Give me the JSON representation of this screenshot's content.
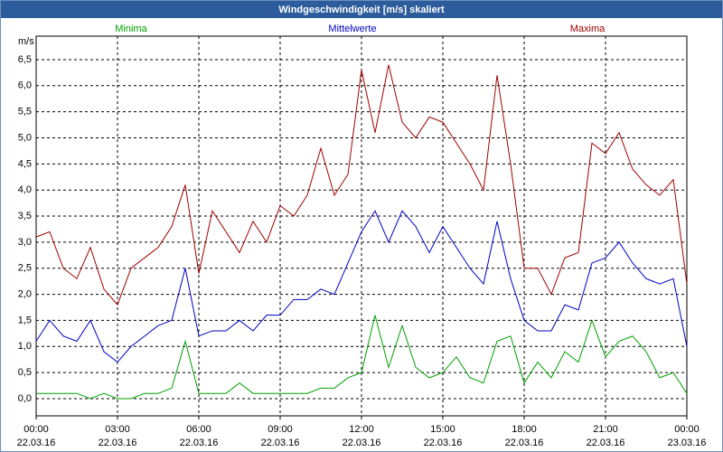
{
  "chart_data": {
    "type": "line",
    "title": "Windgeschwindigkeit [m/s] skaliert",
    "ylabel": "m/s",
    "x": [
      0,
      0.5,
      1,
      1.5,
      2,
      2.5,
      3,
      3.5,
      4,
      4.5,
      5,
      5.5,
      6,
      6.5,
      7,
      7.5,
      8,
      8.5,
      9,
      9.5,
      10,
      10.5,
      11,
      11.5,
      12,
      12.5,
      13,
      13.5,
      14,
      14.5,
      15,
      15.5,
      16,
      16.5,
      17,
      17.5,
      18,
      18.5,
      19,
      19.5,
      20,
      20.5,
      21,
      21.5,
      22,
      22.5,
      23,
      23.5,
      24
    ],
    "series": [
      {
        "name": "Minima",
        "color": "#00a000",
        "values": [
          0.1,
          0.1,
          0.1,
          0.1,
          0.0,
          0.1,
          0.0,
          0.0,
          0.1,
          0.1,
          0.2,
          1.1,
          0.1,
          0.1,
          0.1,
          0.3,
          0.1,
          0.1,
          0.1,
          0.1,
          0.1,
          0.2,
          0.2,
          0.4,
          0.5,
          1.6,
          0.6,
          1.4,
          0.6,
          0.4,
          0.5,
          0.8,
          0.4,
          0.3,
          1.1,
          1.2,
          0.3,
          0.7,
          0.4,
          0.9,
          0.7,
          1.5,
          0.8,
          1.1,
          1.2,
          0.9,
          0.4,
          0.5,
          0.1
        ]
      },
      {
        "name": "Mittelwerte",
        "color": "#0000c0",
        "values": [
          1.1,
          1.5,
          1.2,
          1.1,
          1.5,
          0.9,
          0.7,
          1.0,
          1.2,
          1.4,
          1.5,
          2.5,
          1.2,
          1.3,
          1.3,
          1.5,
          1.3,
          1.6,
          1.6,
          1.9,
          1.9,
          2.1,
          2.0,
          2.6,
          3.2,
          3.6,
          3.0,
          3.6,
          3.3,
          2.8,
          3.3,
          2.9,
          2.5,
          2.2,
          3.4,
          2.3,
          1.5,
          1.3,
          1.3,
          1.8,
          1.7,
          2.6,
          2.7,
          3.0,
          2.6,
          2.3,
          2.2,
          2.3,
          1.0
        ]
      },
      {
        "name": "Maxima",
        "color": "#a00000",
        "values": [
          3.1,
          3.2,
          2.5,
          2.3,
          2.9,
          2.1,
          1.8,
          2.5,
          2.7,
          2.9,
          3.3,
          4.1,
          2.4,
          3.6,
          3.2,
          2.8,
          3.4,
          3.0,
          3.7,
          3.5,
          3.9,
          4.8,
          3.9,
          4.3,
          6.3,
          5.1,
          6.4,
          5.3,
          5.0,
          5.4,
          5.3,
          4.9,
          4.5,
          4.0,
          6.2,
          4.5,
          2.5,
          2.5,
          2.0,
          2.7,
          2.8,
          4.9,
          4.7,
          5.1,
          4.4,
          4.1,
          3.9,
          4.2,
          2.2
        ]
      }
    ],
    "xlim": [
      0,
      24
    ],
    "ylim": [
      -0.33,
      6.95
    ],
    "yticks": [
      {
        "value": 0,
        "label": "0,0"
      },
      {
        "value": 0.5,
        "label": "0,5"
      },
      {
        "value": 1,
        "label": "1,0"
      },
      {
        "value": 1.5,
        "label": "1,5"
      },
      {
        "value": 2,
        "label": "2,0"
      },
      {
        "value": 2.5,
        "label": "2,5"
      },
      {
        "value": 3,
        "label": "3,0"
      },
      {
        "value": 3.5,
        "label": "3,5"
      },
      {
        "value": 4,
        "label": "4,0"
      },
      {
        "value": 4.5,
        "label": "4,5"
      },
      {
        "value": 5,
        "label": "5,0"
      },
      {
        "value": 5.5,
        "label": "5,5"
      },
      {
        "value": 6,
        "label": "6,0"
      },
      {
        "value": 6.5,
        "label": "6,5"
      }
    ],
    "xticks": [
      {
        "value": 0,
        "label": "00:00",
        "date": "22.03.16"
      },
      {
        "value": 3,
        "label": "03:00",
        "date": "22.03.16"
      },
      {
        "value": 6,
        "label": "06:00",
        "date": "22.03.16"
      },
      {
        "value": 9,
        "label": "09:00",
        "date": "22.03.16"
      },
      {
        "value": 12,
        "label": "12:00",
        "date": "22.03.16"
      },
      {
        "value": 15,
        "label": "15:00",
        "date": "22.03.16"
      },
      {
        "value": 18,
        "label": "18:00",
        "date": "22.03.16"
      },
      {
        "value": 21,
        "label": "21:00",
        "date": "22.03.16"
      },
      {
        "value": 24,
        "label": "00:00",
        "date": "23.03.16"
      }
    ],
    "grid": true
  }
}
